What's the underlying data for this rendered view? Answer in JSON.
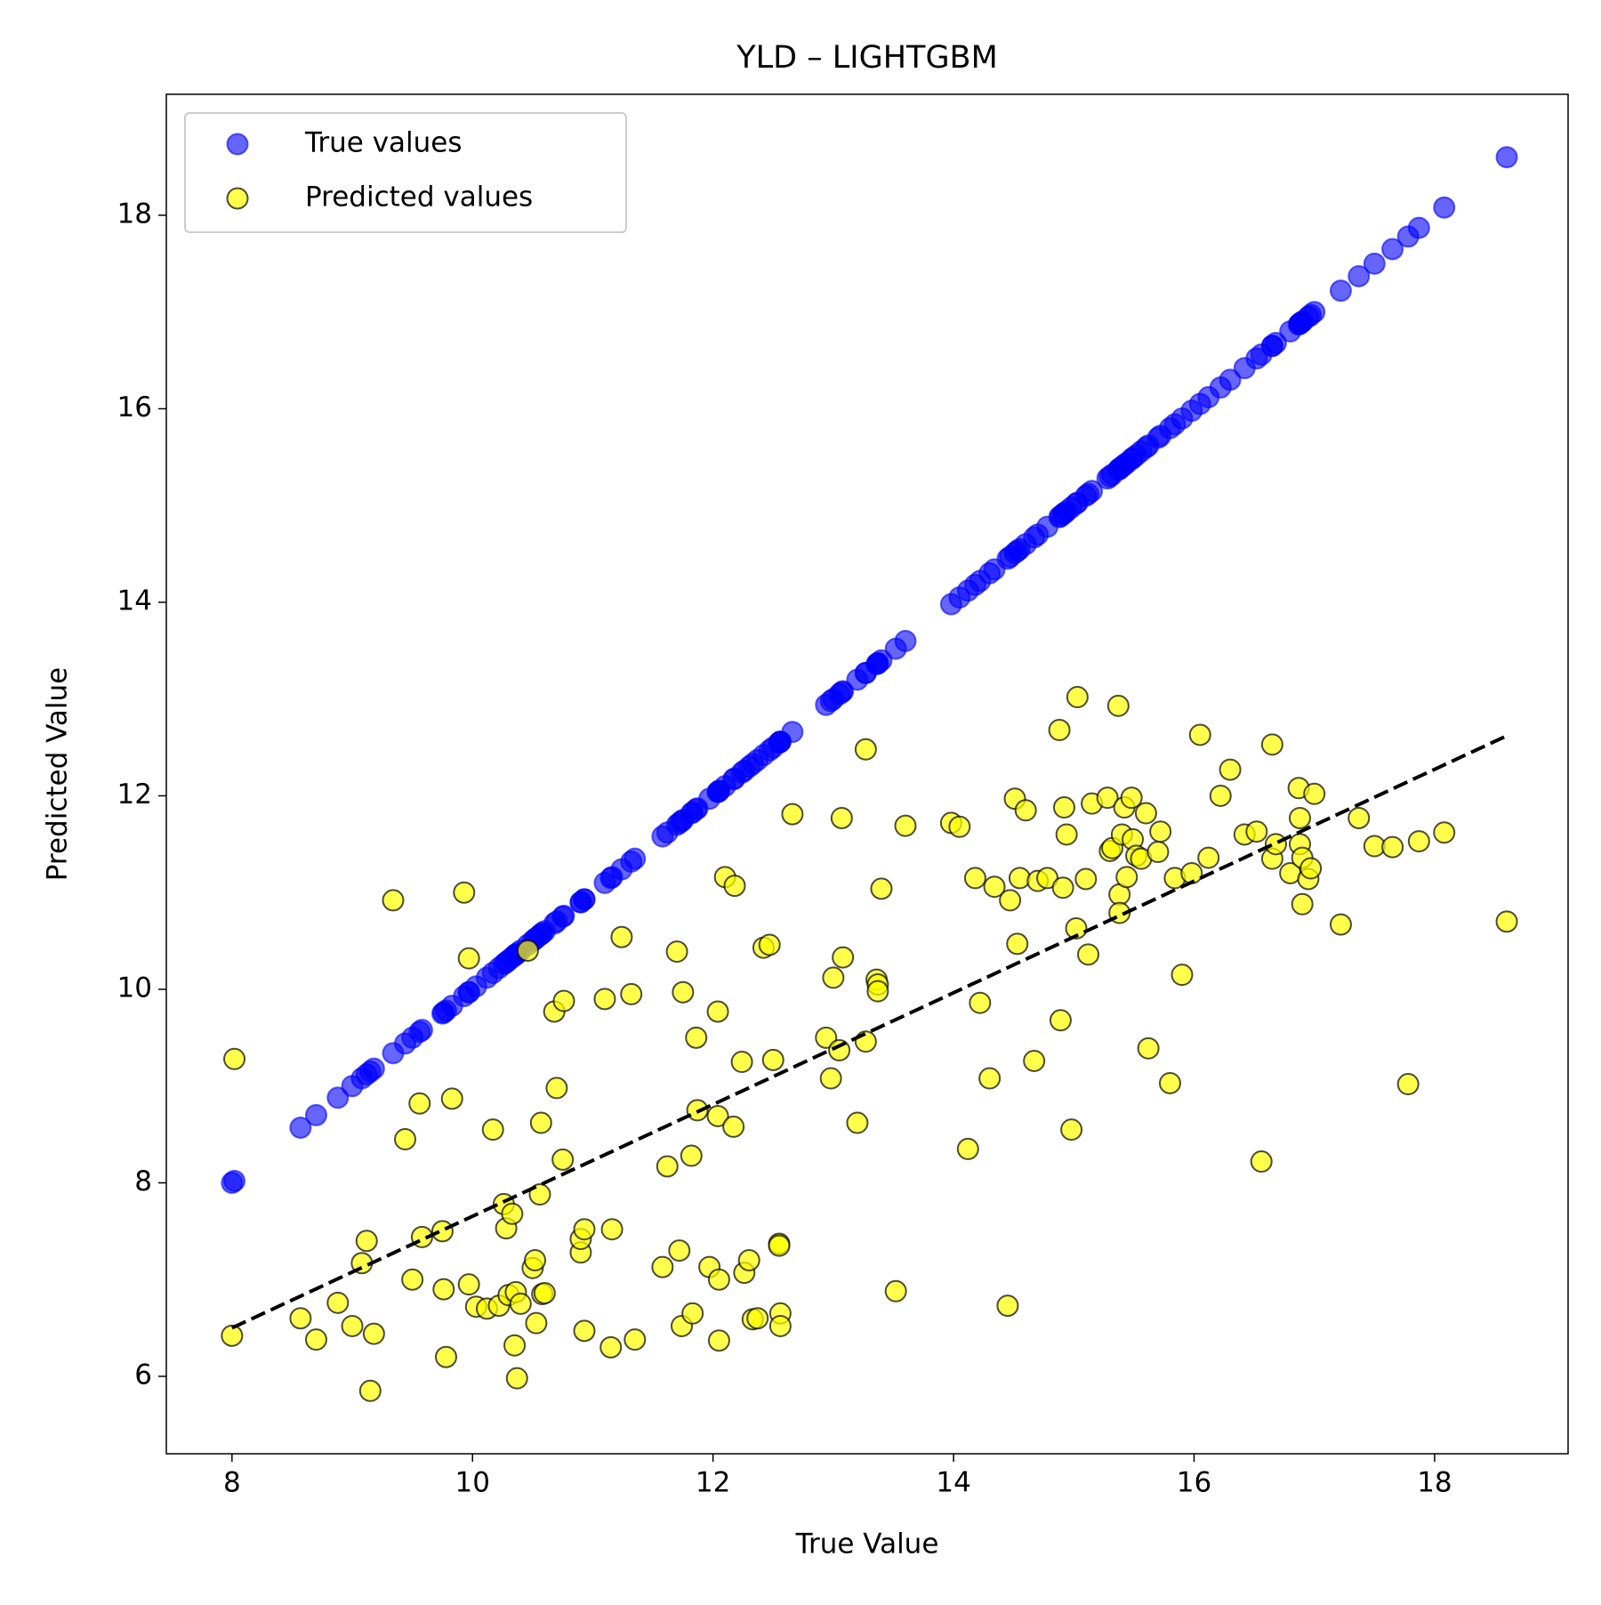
{
  "chart_data": {
    "type": "scatter",
    "title": "YLD – LIGHTGBM",
    "x_label": "True Value",
    "y_label": "Predicted Value",
    "xlim": [
      7.454,
      19.11
    ],
    "ylim": [
      5.2,
      19.25
    ],
    "xticks": [
      8,
      10,
      12,
      14,
      16,
      18
    ],
    "yticks": [
      6,
      8,
      10,
      12,
      14,
      16,
      18
    ],
    "legend_position": "upper left",
    "x": [
      8.0,
      8.02,
      8.57,
      8.7,
      8.88,
      9.0,
      9.08,
      9.12,
      9.15,
      9.18,
      9.34,
      9.44,
      9.5,
      9.56,
      9.58,
      9.75,
      9.76,
      9.78,
      9.83,
      9.93,
      9.97,
      9.97,
      10.03,
      10.12,
      10.17,
      10.22,
      10.26,
      10.28,
      10.3,
      10.33,
      10.35,
      10.36,
      10.37,
      10.4,
      10.46,
      10.5,
      10.52,
      10.53,
      10.56,
      10.57,
      10.58,
      10.6,
      10.68,
      10.7,
      10.75,
      10.76,
      10.9,
      10.9,
      10.93,
      10.93,
      11.1,
      11.15,
      11.16,
      11.24,
      11.32,
      11.35,
      11.58,
      11.62,
      11.7,
      11.72,
      11.74,
      11.75,
      11.82,
      11.83,
      11.86,
      11.87,
      11.97,
      12.04,
      12.04,
      12.05,
      12.05,
      12.1,
      12.17,
      12.18,
      12.24,
      12.26,
      12.3,
      12.33,
      12.37,
      12.42,
      12.47,
      12.5,
      12.55,
      12.55,
      12.56,
      12.56,
      12.66,
      12.94,
      12.98,
      13.0,
      13.05,
      13.07,
      13.08,
      13.2,
      13.27,
      13.27,
      13.36,
      13.37,
      13.37,
      13.4,
      13.52,
      13.6,
      13.98,
      14.05,
      14.12,
      14.18,
      14.22,
      14.3,
      14.34,
      14.45,
      14.47,
      14.51,
      14.53,
      14.55,
      14.6,
      14.67,
      14.7,
      14.78,
      14.88,
      14.89,
      14.91,
      14.92,
      14.94,
      14.98,
      15.02,
      15.03,
      15.1,
      15.12,
      15.15,
      15.28,
      15.3,
      15.32,
      15.37,
      15.38,
      15.38,
      15.4,
      15.42,
      15.44,
      15.48,
      15.49,
      15.52,
      15.56,
      15.6,
      15.62,
      15.7,
      15.72,
      15.8,
      15.84,
      15.9,
      15.98,
      16.05,
      16.12,
      16.22,
      16.3,
      16.42,
      16.52,
      16.56,
      16.65,
      16.65,
      16.68,
      16.8,
      16.87,
      16.88,
      16.88,
      16.9,
      16.9,
      16.95,
      16.97,
      17.0,
      17.22,
      17.37,
      17.5,
      17.65,
      17.78,
      17.87,
      18.08,
      18.6
    ],
    "series": [
      {
        "name": "True values",
        "color": "#0000ff",
        "edge_color": "#0000ff",
        "opacity": 0.6,
        "values": [
          8.0,
          8.02,
          8.57,
          8.7,
          8.88,
          9.0,
          9.08,
          9.12,
          9.15,
          9.18,
          9.34,
          9.44,
          9.5,
          9.56,
          9.58,
          9.75,
          9.76,
          9.78,
          9.83,
          9.93,
          9.97,
          9.97,
          10.03,
          10.12,
          10.17,
          10.22,
          10.26,
          10.28,
          10.3,
          10.33,
          10.35,
          10.36,
          10.37,
          10.4,
          10.46,
          10.5,
          10.52,
          10.53,
          10.56,
          10.57,
          10.58,
          10.6,
          10.68,
          10.7,
          10.75,
          10.76,
          10.9,
          10.9,
          10.93,
          10.93,
          11.1,
          11.15,
          11.16,
          11.24,
          11.32,
          11.35,
          11.58,
          11.62,
          11.7,
          11.72,
          11.74,
          11.75,
          11.82,
          11.83,
          11.86,
          11.87,
          11.97,
          12.04,
          12.04,
          12.05,
          12.05,
          12.1,
          12.17,
          12.18,
          12.24,
          12.26,
          12.3,
          12.33,
          12.37,
          12.42,
          12.47,
          12.5,
          12.55,
          12.55,
          12.56,
          12.56,
          12.66,
          12.94,
          12.98,
          13.0,
          13.05,
          13.07,
          13.08,
          13.2,
          13.27,
          13.27,
          13.36,
          13.37,
          13.37,
          13.4,
          13.52,
          13.6,
          13.98,
          14.05,
          14.12,
          14.18,
          14.22,
          14.3,
          14.34,
          14.45,
          14.47,
          14.51,
          14.53,
          14.55,
          14.6,
          14.67,
          14.7,
          14.78,
          14.88,
          14.89,
          14.91,
          14.92,
          14.94,
          14.98,
          15.02,
          15.03,
          15.1,
          15.12,
          15.15,
          15.28,
          15.3,
          15.32,
          15.37,
          15.38,
          15.38,
          15.4,
          15.42,
          15.44,
          15.48,
          15.49,
          15.52,
          15.56,
          15.6,
          15.62,
          15.7,
          15.72,
          15.8,
          15.84,
          15.9,
          15.98,
          16.05,
          16.12,
          16.22,
          16.3,
          16.42,
          16.52,
          16.56,
          16.65,
          16.65,
          16.68,
          16.8,
          16.87,
          16.88,
          16.88,
          16.9,
          16.9,
          16.95,
          16.97,
          17.0,
          17.22,
          17.37,
          17.5,
          17.65,
          17.78,
          17.87,
          18.08,
          18.6
        ]
      },
      {
        "name": "Predicted values",
        "color": "#ffff00",
        "edge_color": "#000000",
        "opacity": 0.7,
        "values": [
          6.42,
          9.28,
          6.6,
          6.38,
          6.76,
          6.52,
          7.17,
          7.4,
          5.85,
          6.44,
          10.92,
          8.45,
          7.0,
          8.82,
          7.44,
          7.5,
          6.9,
          6.2,
          8.87,
          11.0,
          10.32,
          6.95,
          6.72,
          6.7,
          8.55,
          6.73,
          7.78,
          7.53,
          6.84,
          7.68,
          6.32,
          6.87,
          5.98,
          6.75,
          10.4,
          7.12,
          7.2,
          6.55,
          7.88,
          8.62,
          6.85,
          6.86,
          9.77,
          8.98,
          8.24,
          9.88,
          7.28,
          7.42,
          7.52,
          6.47,
          9.9,
          6.3,
          7.52,
          10.54,
          9.95,
          6.38,
          7.13,
          8.17,
          10.39,
          7.3,
          6.52,
          9.97,
          8.28,
          6.65,
          9.5,
          8.75,
          7.13,
          9.77,
          8.69,
          7.0,
          6.37,
          11.16,
          8.58,
          11.07,
          9.25,
          7.07,
          7.2,
          6.59,
          6.6,
          10.43,
          10.46,
          9.27,
          7.37,
          7.35,
          6.65,
          6.52,
          11.81,
          9.5,
          9.08,
          10.12,
          9.37,
          11.77,
          10.33,
          8.62,
          12.48,
          9.46,
          10.1,
          10.05,
          9.98,
          11.04,
          6.88,
          11.69,
          11.72,
          11.68,
          8.35,
          11.15,
          9.86,
          9.08,
          11.06,
          6.73,
          10.92,
          11.97,
          10.47,
          11.15,
          11.85,
          9.26,
          11.12,
          11.15,
          12.68,
          9.68,
          11.05,
          11.88,
          11.6,
          8.55,
          10.63,
          13.02,
          11.14,
          10.36,
          11.92,
          11.98,
          11.43,
          11.46,
          12.93,
          10.98,
          10.79,
          11.6,
          11.88,
          11.16,
          11.98,
          11.55,
          11.38,
          11.35,
          11.82,
          9.39,
          11.42,
          11.63,
          9.03,
          11.15,
          10.15,
          11.2,
          12.63,
          11.36,
          12.0,
          12.27,
          11.6,
          11.63,
          8.22,
          12.53,
          11.35,
          11.5,
          11.2,
          12.08,
          11.5,
          11.77,
          10.88,
          11.36,
          11.14,
          11.25,
          12.02,
          10.67,
          11.77,
          11.48,
          11.47,
          9.02,
          11.53,
          11.62,
          10.7
        ]
      }
    ],
    "reference_line": {
      "x": [
        8.0,
        18.6
      ],
      "y": [
        6.5,
        12.62
      ],
      "color": "#000000",
      "dashed": true
    }
  }
}
